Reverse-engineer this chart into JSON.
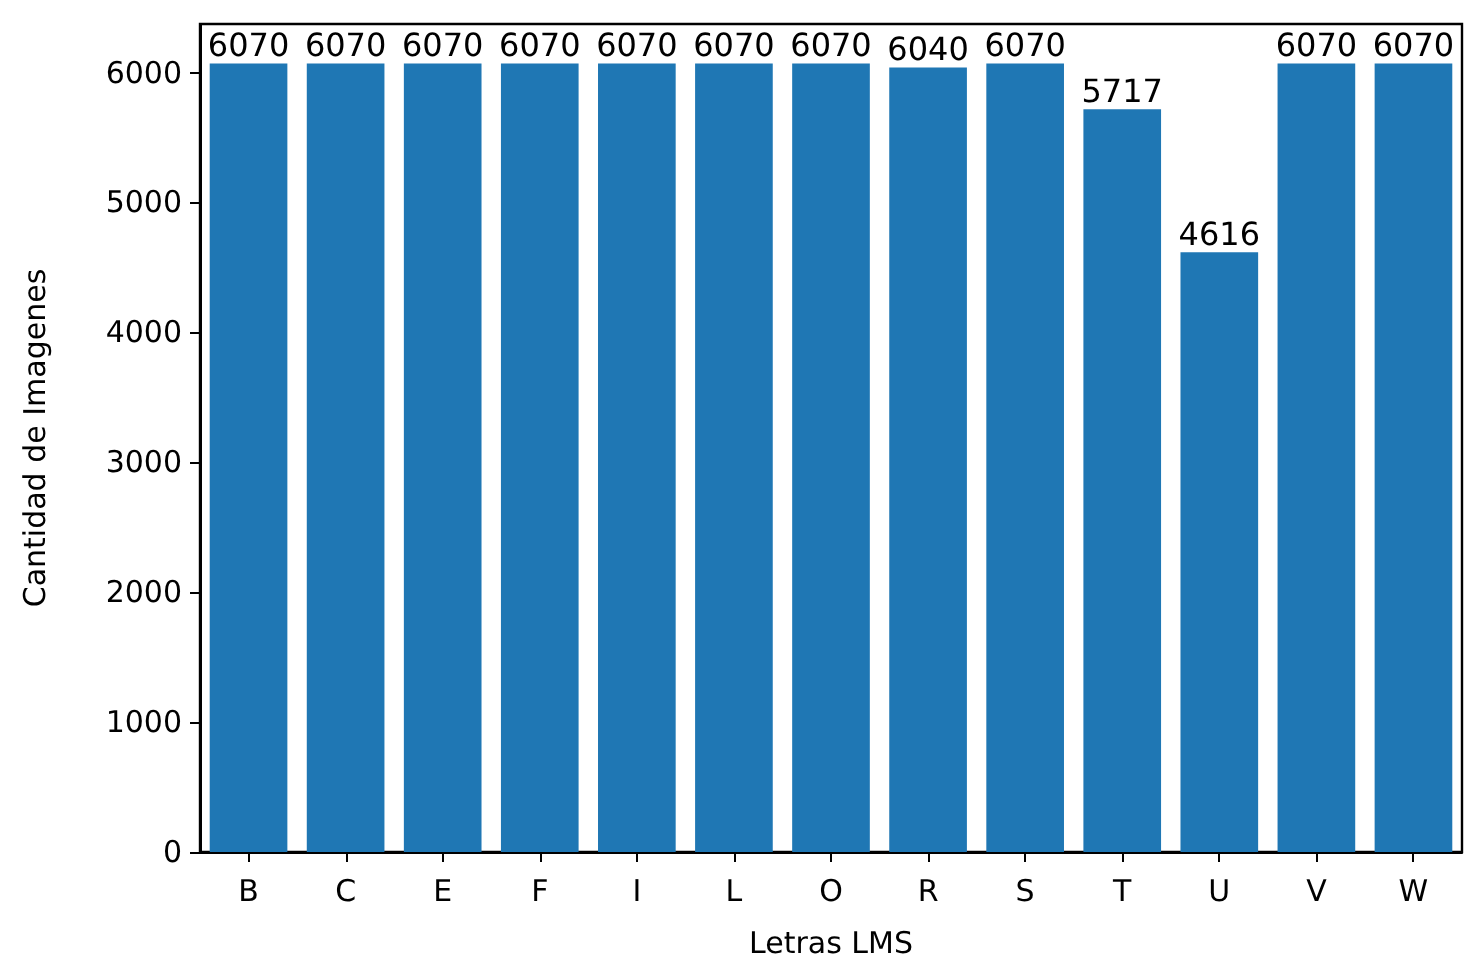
{
  "chart_data": {
    "type": "bar",
    "xlabel": "Letras LMS",
    "ylabel": "Cantidad de Imagenes",
    "categories": [
      "B",
      "C",
      "E",
      "F",
      "I",
      "L",
      "O",
      "R",
      "S",
      "T",
      "U",
      "V",
      "W"
    ],
    "values": [
      6070,
      6070,
      6070,
      6070,
      6070,
      6070,
      6070,
      6040,
      6070,
      5717,
      4616,
      6070,
      6070
    ],
    "color": "#1f77b4",
    "ylim": [
      0,
      6374
    ],
    "yticks": [
      0,
      1000,
      2000,
      3000,
      4000,
      5000,
      6000
    ],
    "grid": false,
    "data_labels": true
  }
}
